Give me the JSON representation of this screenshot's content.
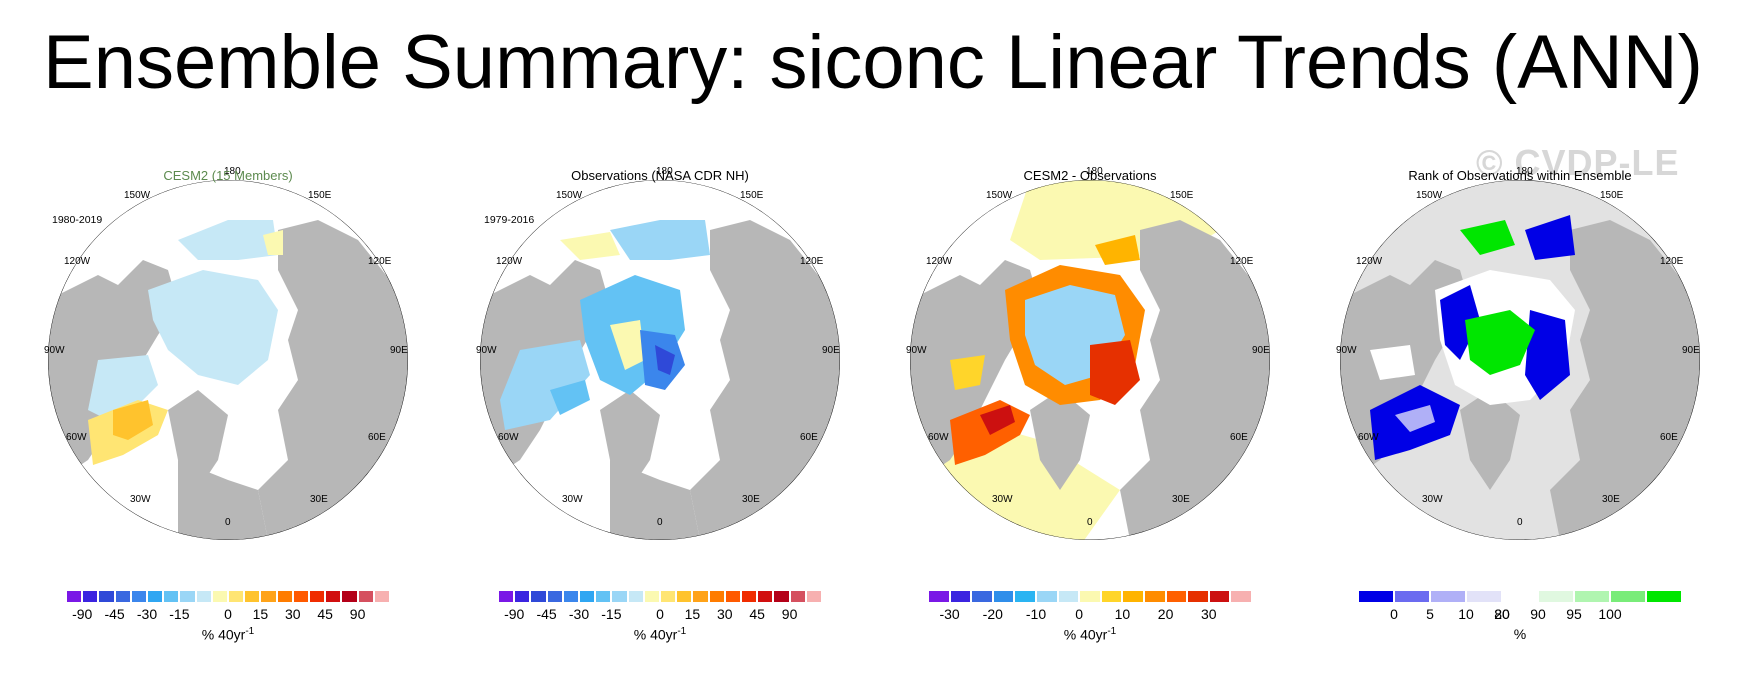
{
  "title": "Ensemble Summary: siconc Linear Trends (ANN)",
  "watermark": "© CVDP-LE",
  "lon_labels": [
    "180",
    "150E",
    "120E",
    "90E",
    "60E",
    "30E",
    "0",
    "30W",
    "60W",
    "90W",
    "120W",
    "150W"
  ],
  "land_color": "#b7b7b7",
  "panels": [
    {
      "title": "CESM2 (15 Members)",
      "title_color": "#5c8a4e",
      "years": "1980-2019",
      "colorbar": {
        "colors": [
          "#7a18e6",
          "#3b24e0",
          "#2f49d8",
          "#3a68e0",
          "#3b86ec",
          "#2fa6f2",
          "#63c2f4",
          "#9ad6f6",
          "#c6e8f6",
          "#fbf9b1",
          "#ffe573",
          "#ffc32d",
          "#ffa319",
          "#ff7c00",
          "#ff5a00",
          "#f02c00",
          "#d10f0f",
          "#b40018",
          "#d5505f",
          "#f7b0b0"
        ],
        "labels": [
          "-90",
          "-45",
          "-30",
          "-15",
          "0",
          "15",
          "30",
          "45",
          "90"
        ],
        "unit": "% 40yr",
        "unit_sup": "-1"
      }
    },
    {
      "title": "Observations (NASA CDR NH)",
      "title_color": "#000000",
      "years": "1979-2016",
      "colorbar": {
        "colors": [
          "#7a18e6",
          "#3b24e0",
          "#2f49d8",
          "#3a68e0",
          "#3b86ec",
          "#2fa6f2",
          "#63c2f4",
          "#9ad6f6",
          "#c6e8f6",
          "#fbf9b1",
          "#ffe573",
          "#ffc32d",
          "#ffa319",
          "#ff7c00",
          "#ff5a00",
          "#f02c00",
          "#d10f0f",
          "#b40018",
          "#d5505f",
          "#f7b0b0"
        ],
        "labels": [
          "-90",
          "-45",
          "-30",
          "-15",
          "0",
          "15",
          "30",
          "45",
          "90"
        ],
        "unit": "% 40yr",
        "unit_sup": "-1"
      }
    },
    {
      "title": "CESM2 - Observations",
      "title_color": "#000000",
      "years": "",
      "colorbar": {
        "colors": [
          "#7a18e6",
          "#3b24e0",
          "#3a68e0",
          "#2f8eea",
          "#2ab4f2",
          "#9ad6f6",
          "#c6e8f6",
          "#fbf9b1",
          "#ffd52a",
          "#ffb400",
          "#ff8c00",
          "#ff6000",
          "#e63000",
          "#cc1010",
          "#f7b0b0"
        ],
        "labels": [
          "-30",
          "-20",
          "-10",
          "0",
          "10",
          "20",
          "30"
        ],
        "unit": "% 40yr",
        "unit_sup": "-1"
      }
    },
    {
      "title": "Rank of Observations within Ensemble",
      "title_color": "#000000",
      "years": "",
      "colorbar": {
        "colors": [
          "#0000e6",
          "#6b6bf0",
          "#b0b0f7",
          "#e2e2f8",
          "#ffffff",
          "#e0f8e0",
          "#b0f5b0",
          "#79ec79",
          "#00e600"
        ],
        "labels": [
          "0",
          "5",
          "10",
          "20",
          "80",
          "90",
          "95",
          "100"
        ],
        "unit": "%",
        "unit_sup": ""
      }
    }
  ]
}
